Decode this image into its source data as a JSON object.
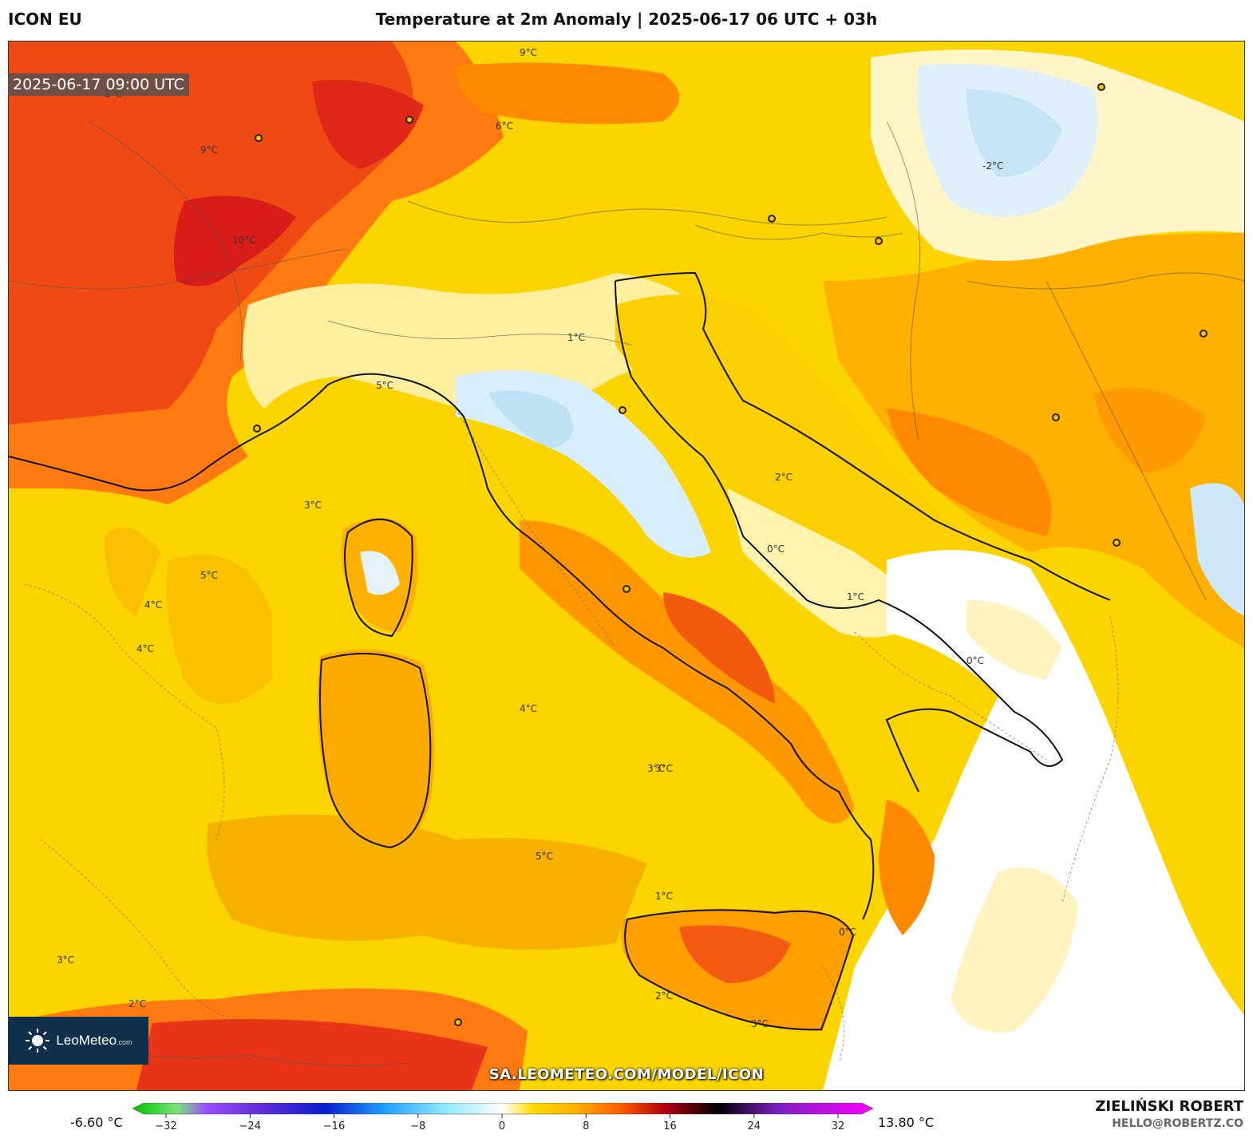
{
  "header": {
    "model": "ICON EU",
    "title": "Temperature at 2m Anomaly | 2025-06-17 06 UTC + 03h"
  },
  "map": {
    "valid_time": "2025-06-17 09:00 UTC",
    "source_url": "SA.LEOMETEO.COM/MODEL/ICON",
    "logo_text": "LeoMeteo",
    "logo_suffix": ".com",
    "contour_labels": [
      "10°C",
      "9°C",
      "9°C",
      "8°C",
      "6°C",
      "5°C",
      "5°C",
      "4°C",
      "4°C",
      "3°C",
      "3°C",
      "3°C",
      "3°C",
      "2°C",
      "2°C",
      "1°C",
      "1°C",
      "1°C",
      "0°C",
      "0°C",
      "0°C",
      "-2°C",
      "5°C",
      "4°C",
      "3°C",
      "2°C"
    ]
  },
  "colorbar": {
    "min_label": "-6.60 °C",
    "max_label": "13.80 °C",
    "ticks": [
      "−32",
      "−24",
      "−16",
      "−8",
      "0",
      "8",
      "16",
      "24",
      "32"
    ],
    "colors": [
      "#00c000",
      "#3fd24a",
      "#7ae57c",
      "#9a4dff",
      "#5b2bd6",
      "#2a10b8",
      "#0a1fd0",
      "#1a5ef0",
      "#1ea0ff",
      "#29d2ff",
      "#8ee8ff",
      "#cfeffc",
      "#ffffff",
      "#fff2b0",
      "#ffdc00",
      "#ffb000",
      "#ff8a00",
      "#ff5a00",
      "#f22010",
      "#b00010",
      "#3a0010",
      "#000000",
      "#301060",
      "#7a20c0",
      "#c020e0",
      "#ff00ff"
    ]
  },
  "author": {
    "name": "ZIELIŃSKI ROBERT",
    "email": "HELLO@ROBERTZ.CO"
  },
  "icons": {
    "logo": "sun-icon",
    "cities": "city-marker-icon"
  }
}
